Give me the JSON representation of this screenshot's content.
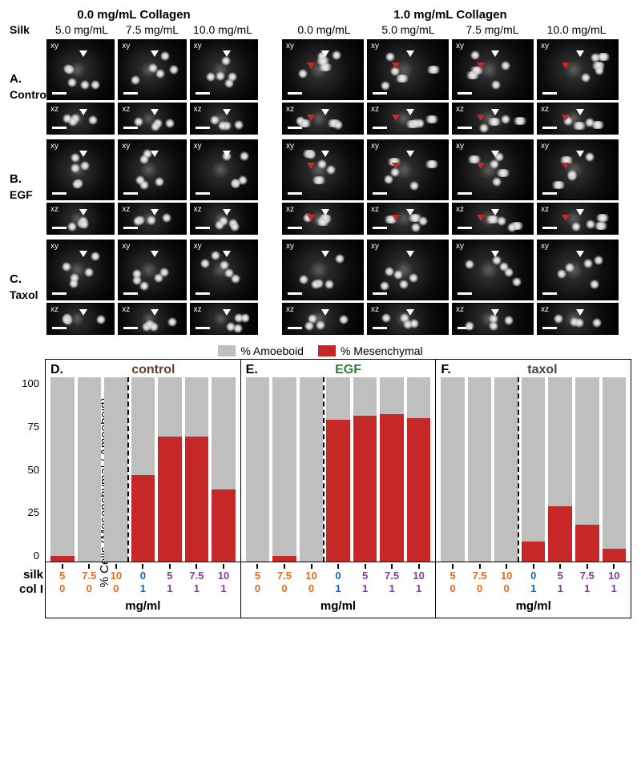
{
  "colors": {
    "amoeboid": "#bfbfbf",
    "mesenchymal": "#c62828",
    "control_title": "#6b3a2a",
    "egf_title": "#2e7d32",
    "taxol_title": "#444444",
    "silk_text": "#e66b1f",
    "col_text": "#1565c0",
    "col_with_collagen": "#7b3fa0",
    "white": "#ffffff",
    "black": "#000000"
  },
  "micro": {
    "left_title": "0.0 mg/mL Collagen",
    "right_title": "1.0 mg/mL Collagen",
    "silk_label": "Silk",
    "left_cols": [
      "5.0 mg/mL",
      "7.5 mg/mL",
      "10.0 mg/mL"
    ],
    "right_cols": [
      "0.0 mg/mL",
      "5.0 mg/mL",
      "7.5 mg/mL",
      "10.0 mg/mL"
    ],
    "rows": [
      {
        "letter": "A.",
        "name": "Control"
      },
      {
        "letter": "B.",
        "name": "EGF"
      },
      {
        "letter": "C.",
        "name": "Taxol"
      }
    ],
    "planes": {
      "xy": "xy",
      "xz": "xz"
    }
  },
  "legend": {
    "amoeboid": "% Amoeboid",
    "mesenchymal": "% Mesenchymal"
  },
  "charts": {
    "y_label": "% Cells (Mesenchymal / Amoeboid)",
    "y_ticks": [
      100,
      75,
      50,
      25,
      0
    ],
    "silk_row_label": "silk",
    "col_row_label": "col I",
    "unit_label": "mg/ml",
    "panels": [
      {
        "letter": "D.",
        "title": "control",
        "title_color": "#6b3a2a",
        "bars": [
          {
            "silk": "5",
            "col": "0",
            "mes": 3,
            "silk_color": "#e66b1f",
            "col_color": "#e66b1f"
          },
          {
            "silk": "7.5",
            "col": "0",
            "mes": 0,
            "silk_color": "#e66b1f",
            "col_color": "#e66b1f"
          },
          {
            "silk": "10",
            "col": "0",
            "mes": 0,
            "silk_color": "#e66b1f",
            "col_color": "#e66b1f"
          },
          {
            "silk": "0",
            "col": "1",
            "mes": 47,
            "silk_color": "#1565c0",
            "col_color": "#1565c0"
          },
          {
            "silk": "5",
            "col": "1",
            "mes": 68,
            "silk_color": "#7b3fa0",
            "col_color": "#7b3fa0"
          },
          {
            "silk": "7.5",
            "col": "1",
            "mes": 68,
            "silk_color": "#7b3fa0",
            "col_color": "#7b3fa0"
          },
          {
            "silk": "10",
            "col": "1",
            "mes": 39,
            "silk_color": "#7b3fa0",
            "col_color": "#7b3fa0"
          }
        ]
      },
      {
        "letter": "E.",
        "title": "EGF",
        "title_color": "#2e7d32",
        "bars": [
          {
            "silk": "5",
            "col": "0",
            "mes": 0,
            "silk_color": "#e66b1f",
            "col_color": "#e66b1f"
          },
          {
            "silk": "7.5",
            "col": "0",
            "mes": 3,
            "silk_color": "#e66b1f",
            "col_color": "#e66b1f"
          },
          {
            "silk": "10",
            "col": "0",
            "mes": 0,
            "silk_color": "#e66b1f",
            "col_color": "#e66b1f"
          },
          {
            "silk": "0",
            "col": "1",
            "mes": 77,
            "silk_color": "#1565c0",
            "col_color": "#1565c0"
          },
          {
            "silk": "5",
            "col": "1",
            "mes": 79,
            "silk_color": "#7b3fa0",
            "col_color": "#7b3fa0"
          },
          {
            "silk": "7.5",
            "col": "1",
            "mes": 80,
            "silk_color": "#7b3fa0",
            "col_color": "#7b3fa0"
          },
          {
            "silk": "10",
            "col": "1",
            "mes": 78,
            "silk_color": "#7b3fa0",
            "col_color": "#7b3fa0"
          }
        ]
      },
      {
        "letter": "F.",
        "title": "taxol",
        "title_color": "#444444",
        "bars": [
          {
            "silk": "5",
            "col": "0",
            "mes": 0,
            "silk_color": "#e66b1f",
            "col_color": "#e66b1f"
          },
          {
            "silk": "7.5",
            "col": "0",
            "mes": 0,
            "silk_color": "#e66b1f",
            "col_color": "#e66b1f"
          },
          {
            "silk": "10",
            "col": "0",
            "mes": 0,
            "silk_color": "#e66b1f",
            "col_color": "#e66b1f"
          },
          {
            "silk": "0",
            "col": "1",
            "mes": 11,
            "silk_color": "#1565c0",
            "col_color": "#1565c0"
          },
          {
            "silk": "5",
            "col": "1",
            "mes": 30,
            "silk_color": "#7b3fa0",
            "col_color": "#7b3fa0"
          },
          {
            "silk": "7.5",
            "col": "1",
            "mes": 20,
            "silk_color": "#7b3fa0",
            "col_color": "#7b3fa0"
          },
          {
            "silk": "10",
            "col": "1",
            "mes": 7,
            "silk_color": "#7b3fa0",
            "col_color": "#7b3fa0"
          }
        ]
      }
    ]
  }
}
